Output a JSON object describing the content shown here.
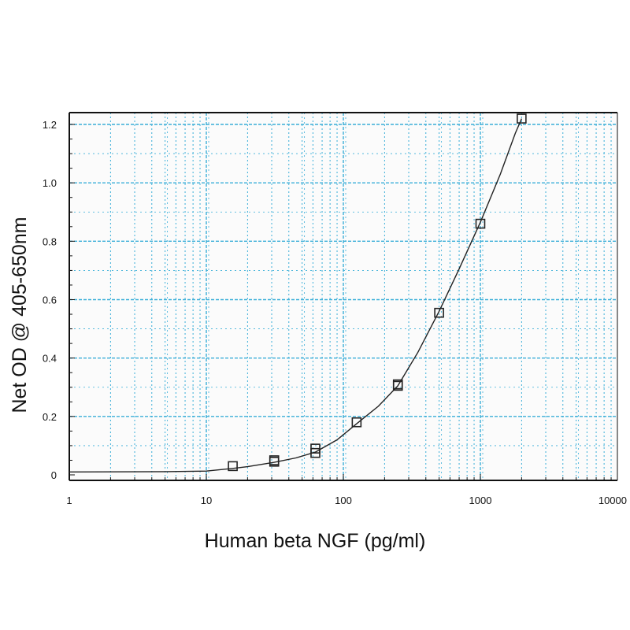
{
  "chart_data": {
    "type": "scatter",
    "xlabel": "Human beta NGF (pg/ml)",
    "ylabel": "Net OD @ 405-650nm",
    "x_scale": "log",
    "xlim": [
      1,
      10000
    ],
    "ylim": [
      0,
      1.25
    ],
    "x_ticks": [
      "1",
      "10",
      "100",
      "1000",
      "10000"
    ],
    "y_ticks": [
      "0",
      "0.2",
      "0.4",
      "0.6",
      "0.8",
      "1.0",
      "1.2"
    ],
    "grid": true,
    "grid_color": "#3aaed8",
    "series": [
      {
        "points": [
          {
            "x": 15.6,
            "y": 0.03
          },
          {
            "x": 31.3,
            "y": 0.045
          },
          {
            "x": 31.3,
            "y": 0.05
          },
          {
            "x": 62.5,
            "y": 0.075
          },
          {
            "x": 62.5,
            "y": 0.09
          },
          {
            "x": 125,
            "y": 0.18
          },
          {
            "x": 250,
            "y": 0.305
          },
          {
            "x": 250,
            "y": 0.31
          },
          {
            "x": 500,
            "y": 0.555
          },
          {
            "x": 1000,
            "y": 0.86
          },
          {
            "x": 2000,
            "y": 1.22
          }
        ],
        "fit_curve": [
          {
            "x": 1,
            "y": 0.01
          },
          {
            "x": 5,
            "y": 0.011
          },
          {
            "x": 10,
            "y": 0.013
          },
          {
            "x": 15.6,
            "y": 0.022
          },
          {
            "x": 20,
            "y": 0.028
          },
          {
            "x": 31.3,
            "y": 0.043
          },
          {
            "x": 45,
            "y": 0.058
          },
          {
            "x": 62.5,
            "y": 0.078
          },
          {
            "x": 90,
            "y": 0.12
          },
          {
            "x": 125,
            "y": 0.175
          },
          {
            "x": 180,
            "y": 0.235
          },
          {
            "x": 250,
            "y": 0.305
          },
          {
            "x": 350,
            "y": 0.42
          },
          {
            "x": 500,
            "y": 0.56
          },
          {
            "x": 700,
            "y": 0.705
          },
          {
            "x": 1000,
            "y": 0.865
          },
          {
            "x": 1400,
            "y": 1.03
          },
          {
            "x": 1800,
            "y": 1.17
          },
          {
            "x": 2000,
            "y": 1.22
          }
        ]
      }
    ]
  }
}
